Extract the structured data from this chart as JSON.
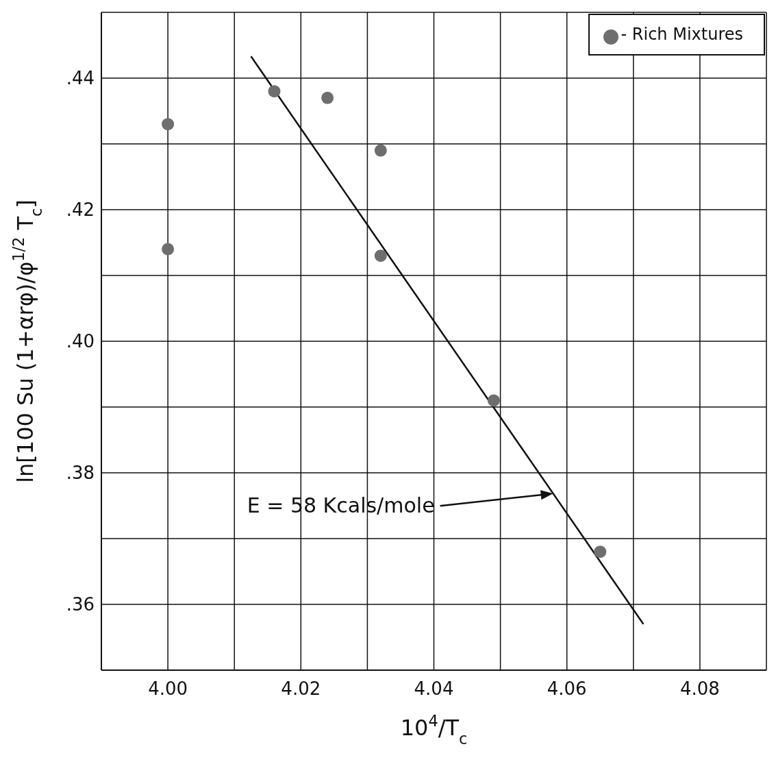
{
  "chart_data": {
    "type": "scatter",
    "xlabel": "10$^{4}$/T$_{c}$",
    "ylabel": "ln[100 Su (1+αrφ)/φ$^{1/2}$ T$_{c}$]",
    "series": [
      {
        "type": "scatter",
        "name": "- Rich Mixtures",
        "color": "#6e6e6e",
        "marker": "circle",
        "x": [
          4.0,
          4.0,
          4.016,
          4.024,
          4.032,
          4.032,
          4.049,
          4.065
        ],
        "values": [
          0.433,
          0.414,
          0.438,
          0.437,
          0.429,
          0.413,
          0.391,
          0.368
        ]
      },
      {
        "type": "line",
        "color": "#111111",
        "marker": "none",
        "line_style": "solid",
        "x": [
          4.0125,
          4.0715
        ],
        "values": [
          0.4433,
          0.357
        ]
      }
    ],
    "annotations": [
      "E = 58 Kcals/mole"
    ],
    "xlim": [
      3.99,
      4.09
    ],
    "xticks": [
      {
        "value": 3.99,
        "label": null
      },
      {
        "value": 4.0,
        "label": "4.00"
      },
      {
        "value": 4.01,
        "label": null
      },
      {
        "value": 4.02,
        "label": "4.02"
      },
      {
        "value": 4.03,
        "label": null
      },
      {
        "value": 4.04,
        "label": "4.04"
      },
      {
        "value": 4.05,
        "label": null
      },
      {
        "value": 4.06,
        "label": "4.06"
      },
      {
        "value": 4.07,
        "label": null
      },
      {
        "value": 4.08,
        "label": "4.08"
      },
      {
        "value": 4.09,
        "label": null
      }
    ],
    "ylim": [
      0.35,
      0.45
    ],
    "yticks": [
      {
        "value": 0.35,
        "label": null
      },
      {
        "value": 0.36,
        "label": ".36"
      },
      {
        "value": 0.37,
        "label": null
      },
      {
        "value": 0.38,
        "label": ".38"
      },
      {
        "value": 0.39,
        "label": null
      },
      {
        "value": 0.4,
        "label": ".40"
      },
      {
        "value": 0.41,
        "label": null
      },
      {
        "value": 0.42,
        "label": ".42"
      },
      {
        "value": 0.43,
        "label": null
      },
      {
        "value": 0.44,
        "label": ".44"
      },
      {
        "value": 0.45,
        "label": null
      }
    ],
    "grid": true,
    "legend": "top right"
  }
}
